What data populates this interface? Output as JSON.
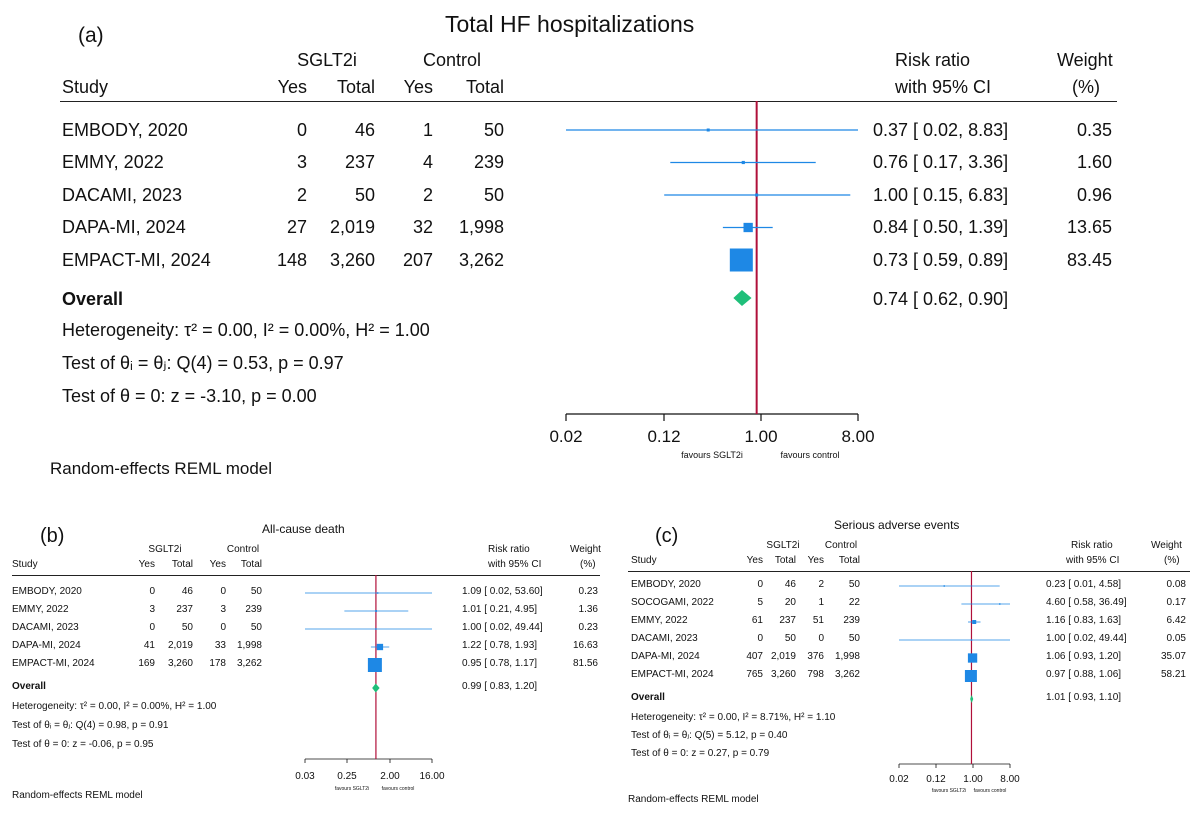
{
  "chart_data": [
    {
      "type": "forest",
      "panel_label": "(a)",
      "title": "Total HF hospitalizations",
      "group_headers": {
        "treatment": "SGLT2i",
        "control": "Control"
      },
      "column_headers": {
        "study": "Study",
        "yes": "Yes",
        "total": "Total",
        "rr_line1": "Risk ratio",
        "rr_line2": "with 95% CI",
        "weight_line1": "Weight",
        "weight_line2": "(%)"
      },
      "studies": [
        {
          "name": "EMBODY, 2020",
          "sglt2i_yes": "0",
          "sglt2i_total": "46",
          "control_yes": "1",
          "control_total": "50",
          "rr": 0.37,
          "lo": 0.02,
          "hi": 8.83,
          "ci_text": "0.37 [ 0.02, 8.83]",
          "weight": 0.35,
          "weight_text": "0.35"
        },
        {
          "name": "EMMY, 2022",
          "sglt2i_yes": "3",
          "sglt2i_total": "237",
          "control_yes": "4",
          "control_total": "239",
          "rr": 0.76,
          "lo": 0.17,
          "hi": 3.36,
          "ci_text": "0.76 [ 0.17, 3.36]",
          "weight": 1.6,
          "weight_text": "1.60"
        },
        {
          "name": "DACAMI, 2023",
          "sglt2i_yes": "2",
          "sglt2i_total": "50",
          "control_yes": "2",
          "control_total": "50",
          "rr": 1.0,
          "lo": 0.15,
          "hi": 6.83,
          "ci_text": "1.00 [ 0.15, 6.83]",
          "weight": 0.96,
          "weight_text": "0.96"
        },
        {
          "name": "DAPA-MI, 2024",
          "sglt2i_yes": "27",
          "sglt2i_total": "2,019",
          "control_yes": "32",
          "control_total": "1,998",
          "rr": 0.84,
          "lo": 0.5,
          "hi": 1.39,
          "ci_text": "0.84 [ 0.50, 1.39]",
          "weight": 13.65,
          "weight_text": "13.65"
        },
        {
          "name": "EMPACT-MI, 2024",
          "sglt2i_yes": "148",
          "sglt2i_total": "3,260",
          "control_yes": "207",
          "control_total": "3,262",
          "rr": 0.73,
          "lo": 0.59,
          "hi": 0.89,
          "ci_text": "0.73 [ 0.59, 0.89]",
          "weight": 83.45,
          "weight_text": "83.45"
        }
      ],
      "overall": {
        "label": "Overall",
        "rr": 0.74,
        "lo": 0.62,
        "hi": 0.9,
        "ci_text": "0.74 [ 0.62, 0.90]"
      },
      "stats": {
        "heterogeneity": "Heterogeneity: τ² = 0.00, I² = 0.00%, H² = 1.00",
        "test_theta_ij": "Test of θᵢ = θⱼ: Q(4) = 0.53, p = 0.97",
        "test_theta_0": "Test of θ = 0: z = -3.10, p = 0.00"
      },
      "x_axis": {
        "scale": "log",
        "range": [
          0.02,
          8.0
        ],
        "ticks": [
          0.02,
          0.12,
          1.0,
          8.0
        ],
        "tick_labels": [
          "0.02",
          "0.12",
          "1.00",
          "8.00"
        ],
        "null_value": 1.0
      },
      "favours_left": "favours SGLT2i",
      "favours_right": "favours control",
      "model_note": "Random-effects REML model"
    },
    {
      "type": "forest",
      "panel_label": "(b)",
      "title": "All-cause death",
      "group_headers": {
        "treatment": "SGLT2i",
        "control": "Control"
      },
      "column_headers": {
        "study": "Study",
        "yes": "Yes",
        "total": "Total",
        "rr_line1": "Risk ratio",
        "rr_line2": "with 95% CI",
        "weight_line1": "Weight",
        "weight_line2": "(%)"
      },
      "studies": [
        {
          "name": "EMBODY, 2020",
          "sglt2i_yes": "0",
          "sglt2i_total": "46",
          "control_yes": "0",
          "control_total": "50",
          "rr": 1.09,
          "lo": 0.02,
          "hi": 53.6,
          "ci_text": "1.09 [ 0.02, 53.60]",
          "weight": 0.23,
          "weight_text": "0.23"
        },
        {
          "name": "EMMY, 2022",
          "sglt2i_yes": "3",
          "sglt2i_total": "237",
          "control_yes": "3",
          "control_total": "239",
          "rr": 1.01,
          "lo": 0.21,
          "hi": 4.95,
          "ci_text": "1.01 [ 0.21, 4.95]",
          "weight": 1.36,
          "weight_text": "1.36"
        },
        {
          "name": "DACAMI, 2023",
          "sglt2i_yes": "0",
          "sglt2i_total": "50",
          "control_yes": "0",
          "control_total": "50",
          "rr": 1.0,
          "lo": 0.02,
          "hi": 49.44,
          "ci_text": "1.00 [ 0.02, 49.44]",
          "weight": 0.23,
          "weight_text": "0.23"
        },
        {
          "name": "DAPA-MI, 2024",
          "sglt2i_yes": "41",
          "sglt2i_total": "2,019",
          "control_yes": "33",
          "control_total": "1,998",
          "rr": 1.22,
          "lo": 0.78,
          "hi": 1.93,
          "ci_text": "1.22 [ 0.78, 1.93]",
          "weight": 16.63,
          "weight_text": "16.63"
        },
        {
          "name": "EMPACT-MI, 2024",
          "sglt2i_yes": "169",
          "sglt2i_total": "3,260",
          "control_yes": "178",
          "control_total": "3,262",
          "rr": 0.95,
          "lo": 0.78,
          "hi": 1.17,
          "ci_text": "0.95 [ 0.78, 1.17]",
          "weight": 81.56,
          "weight_text": "81.56"
        }
      ],
      "overall": {
        "label": "Overall",
        "rr": 0.99,
        "lo": 0.83,
        "hi": 1.2,
        "ci_text": "0.99 [ 0.83, 1.20]"
      },
      "stats": {
        "heterogeneity": "Heterogeneity: τ² = 0.00, I² = 0.00%, H² = 1.00",
        "test_theta_ij": "Test of θᵢ = θⱼ: Q(4) = 0.98, p = 0.91",
        "test_theta_0": "Test of θ = 0: z = -0.06, p = 0.95"
      },
      "x_axis": {
        "scale": "log",
        "range": [
          0.03,
          16.0
        ],
        "ticks": [
          0.03,
          0.25,
          2.0,
          16.0
        ],
        "tick_labels": [
          "0.03",
          "0.25",
          "2.00",
          "16.00"
        ],
        "null_value": 1.0
      },
      "favours_left": "favours SGLT2i",
      "favours_right": "favours control",
      "model_note": "Random-effects REML model"
    },
    {
      "type": "forest",
      "panel_label": "(c)",
      "title": "Serious adverse events",
      "group_headers": {
        "treatment": "SGLT2i",
        "control": "Control"
      },
      "column_headers": {
        "study": "Study",
        "yes": "Yes",
        "total": "Total",
        "rr_line1": "Risk ratio",
        "rr_line2": "with 95% CI",
        "weight_line1": "Weight",
        "weight_line2": "(%)"
      },
      "studies": [
        {
          "name": "EMBODY, 2020",
          "sglt2i_yes": "0",
          "sglt2i_total": "46",
          "control_yes": "2",
          "control_total": "50",
          "rr": 0.23,
          "lo": 0.01,
          "hi": 4.58,
          "ci_text": "0.23 [ 0.01, 4.58]",
          "weight": 0.08,
          "weight_text": "0.08"
        },
        {
          "name": "SOCOGAMI, 2022",
          "sglt2i_yes": "5",
          "sglt2i_total": "20",
          "control_yes": "1",
          "control_total": "22",
          "rr": 4.6,
          "lo": 0.58,
          "hi": 36.49,
          "ci_text": "4.60 [ 0.58, 36.49]",
          "weight": 0.17,
          "weight_text": "0.17"
        },
        {
          "name": "EMMY, 2022",
          "sglt2i_yes": "61",
          "sglt2i_total": "237",
          "control_yes": "51",
          "control_total": "239",
          "rr": 1.16,
          "lo": 0.83,
          "hi": 1.63,
          "ci_text": "1.16 [ 0.83, 1.63]",
          "weight": 6.42,
          "weight_text": "6.42"
        },
        {
          "name": "DACAMI, 2023",
          "sglt2i_yes": "0",
          "sglt2i_total": "50",
          "control_yes": "0",
          "control_total": "50",
          "rr": 1.0,
          "lo": 0.02,
          "hi": 49.44,
          "ci_text": "1.00 [ 0.02, 49.44]",
          "weight": 0.05,
          "weight_text": "0.05"
        },
        {
          "name": "DAPA-MI, 2024",
          "sglt2i_yes": "407",
          "sglt2i_total": "2,019",
          "control_yes": "376",
          "control_total": "1,998",
          "rr": 1.06,
          "lo": 0.93,
          "hi": 1.2,
          "ci_text": "1.06 [ 0.93, 1.20]",
          "weight": 35.07,
          "weight_text": "35.07"
        },
        {
          "name": "EMPACT-MI, 2024",
          "sglt2i_yes": "765",
          "sglt2i_total": "3,260",
          "control_yes": "798",
          "control_total": "3,262",
          "rr": 0.97,
          "lo": 0.88,
          "hi": 1.06,
          "ci_text": "0.97 [ 0.88, 1.06]",
          "weight": 58.21,
          "weight_text": "58.21"
        }
      ],
      "overall": {
        "label": "Overall",
        "rr": 1.01,
        "lo": 0.93,
        "hi": 1.1,
        "ci_text": "1.01 [ 0.93, 1.10]"
      },
      "stats": {
        "heterogeneity": "Heterogeneity: τ² = 0.00, I² = 8.71%, H² = 1.10",
        "test_theta_ij": "Test of θᵢ = θⱼ: Q(5) = 5.12, p = 0.40",
        "test_theta_0": "Test of θ = 0: z = 0.27, p = 0.79"
      },
      "x_axis": {
        "scale": "log",
        "range": [
          0.02,
          8.0
        ],
        "ticks": [
          0.02,
          0.12,
          1.0,
          8.0
        ],
        "tick_labels": [
          "0.02",
          "0.12",
          "1.00",
          "8.00"
        ],
        "null_value": 1.0
      },
      "favours_left": "favours SGLT2i",
      "favours_right": "favours control",
      "model_note": "Random-effects REML model"
    }
  ],
  "colors": {
    "ci_line": "#1e88e5",
    "box": "#1e88e5",
    "diamond": "#1fbf7a",
    "null_line": "#b0103a",
    "text": "#111111"
  }
}
